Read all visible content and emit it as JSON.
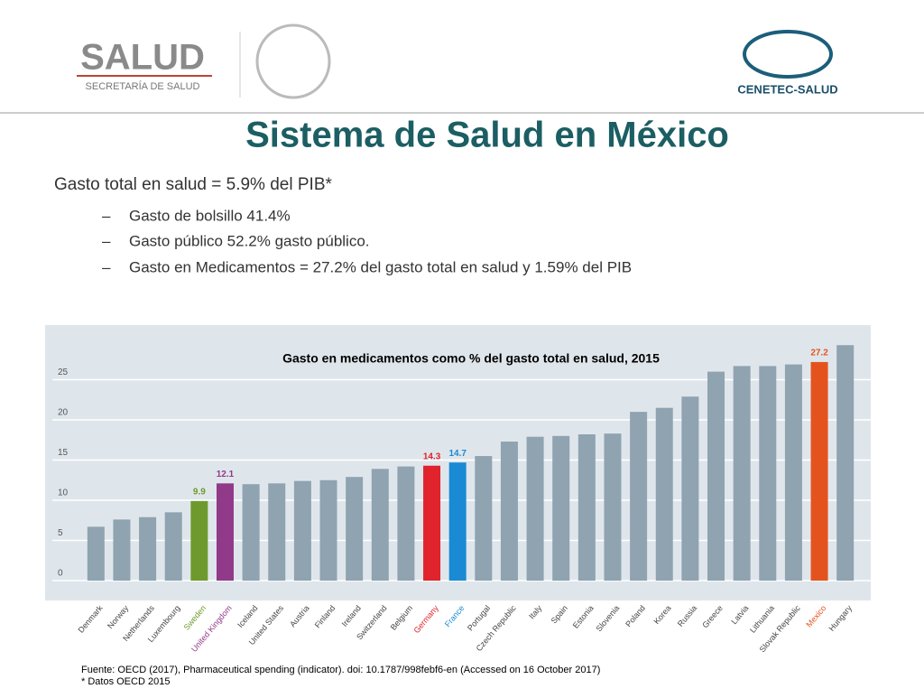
{
  "header": {
    "logo_left": "SALUD",
    "logo_left_sub": "SECRETARÍA DE SALUD",
    "logo_right": "CENETEC-SALUD"
  },
  "slide_title": "Sistema de Salud en México",
  "body": {
    "headline": "Gasto total en salud =  5.9% del PIB*",
    "bullet_marker": "–",
    "bullets": [
      "Gasto de bolsillo 41.4%",
      "Gasto público 52.2% gasto público.",
      "Gasto en Medicamentos = 27.2% del gasto total en salud y 1.59% del PIB"
    ]
  },
  "chart_data": {
    "type": "bar",
    "title": "Gasto en medicamentos como % del gasto total en salud, 2015",
    "categories": [
      "Denmark",
      "Norway",
      "Netherlands",
      "Luxembourg",
      "Sweden",
      "United Kingdom",
      "Iceland",
      "United States",
      "Austria",
      "Finland",
      "Ireland",
      "Switzerland",
      "Belgium",
      "Germany",
      "France",
      "Portugal",
      "Czech Republic",
      "Italy",
      "Spain",
      "Estonia",
      "Slovenia",
      "Poland",
      "Korea",
      "Russia",
      "Greece",
      "Latvia",
      "Lithuania",
      "Slovak Republic",
      "Mexico",
      "Hungary"
    ],
    "values": [
      6.7,
      7.6,
      7.9,
      8.5,
      9.9,
      12.1,
      12.0,
      12.1,
      12.4,
      12.5,
      12.9,
      13.9,
      14.2,
      14.3,
      14.7,
      15.5,
      17.3,
      17.9,
      18.0,
      18.2,
      18.3,
      21.0,
      21.5,
      22.9,
      26.0,
      26.7,
      26.7,
      26.9,
      27.2,
      29.3
    ],
    "value_labels": [
      null,
      null,
      null,
      null,
      "9.9",
      "12.1",
      null,
      null,
      null,
      null,
      null,
      null,
      null,
      "14.3",
      "14.7",
      null,
      null,
      null,
      null,
      null,
      null,
      null,
      null,
      null,
      null,
      null,
      null,
      null,
      "27.2",
      null
    ],
    "colors": [
      "#8fa3b1",
      "#8fa3b1",
      "#8fa3b1",
      "#8fa3b1",
      "#6e9a2d",
      "#913a8a",
      "#8fa3b1",
      "#8fa3b1",
      "#8fa3b1",
      "#8fa3b1",
      "#8fa3b1",
      "#8fa3b1",
      "#8fa3b1",
      "#e0232d",
      "#1a8ad4",
      "#8fa3b1",
      "#8fa3b1",
      "#8fa3b1",
      "#8fa3b1",
      "#8fa3b1",
      "#8fa3b1",
      "#8fa3b1",
      "#8fa3b1",
      "#8fa3b1",
      "#8fa3b1",
      "#8fa3b1",
      "#8fa3b1",
      "#8fa3b1",
      "#e4531e",
      "#8fa3b1"
    ],
    "ylim": [
      0,
      30
    ],
    "yticks": [
      0,
      5,
      10,
      15,
      20,
      25
    ],
    "grid": true
  },
  "footer": {
    "source": "Fuente: OECD (2017), Pharmaceutical spending (indicator). doi: 10.1787/998febf6-en (Accessed on 16 October 2017)",
    "note": "* Datos OECD 2015"
  }
}
